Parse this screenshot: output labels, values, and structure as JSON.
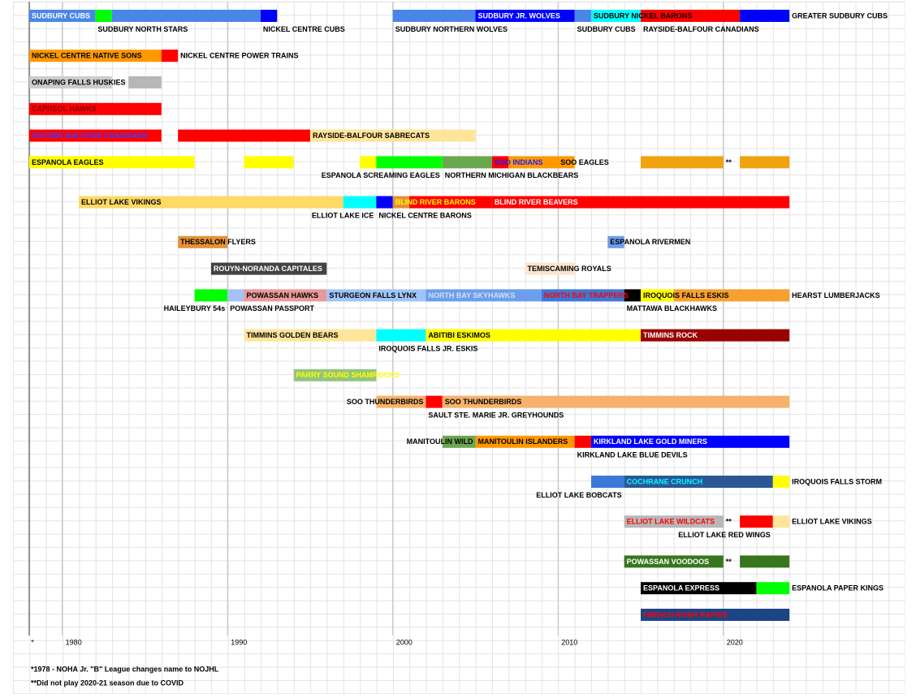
{
  "chart_data": {
    "type": "timeline",
    "xlim": [
      1978,
      2031
    ],
    "xticks": [
      {
        "value": 1978,
        "label": "*"
      },
      1980,
      1990,
      2000,
      2010,
      2020
    ],
    "grid": true,
    "tracks": [
      {
        "segments": [
          {
            "start": 1978,
            "end": 1982,
            "color": "#4a86e8"
          },
          {
            "start": 1982,
            "end": 1983,
            "color": "#00ff00"
          },
          {
            "start": 1983,
            "end": 1992,
            "color": "#4a86e8"
          },
          {
            "start": 1992,
            "end": 1993,
            "color": "#0000ff"
          },
          {
            "start": 2000,
            "end": 2005,
            "color": "#4a86e8"
          },
          {
            "start": 2005,
            "end": 2011,
            "color": "#0000ff"
          },
          {
            "start": 2011,
            "end": 2012,
            "color": "#4a86e8"
          },
          {
            "start": 2012,
            "end": 2015,
            "color": "#00ffff"
          },
          {
            "start": 2015,
            "end": 2021,
            "color": "#ff0000"
          },
          {
            "start": 2021,
            "end": 2024,
            "color": "#0000ff"
          }
        ],
        "labels": [
          {
            "text": "SUDBURY CUBS",
            "segment": 0,
            "place": "in",
            "color": "#ffffff"
          },
          {
            "text": "SUDBURY NORTH STARS",
            "segment": 1,
            "place": "below"
          },
          {
            "text": "NICKEL CENTRE CUBS",
            "segment": 3,
            "place": "below"
          },
          {
            "text": "SUDBURY NORTHERN WOLVES",
            "segment": 4,
            "place": "below"
          },
          {
            "text": "SUDBURY JR. WOLVES",
            "segment": 5,
            "place": "in",
            "color": "#ffffff"
          },
          {
            "text": "SUDBURY CUBS",
            "segment": 6,
            "place": "below"
          },
          {
            "text": "SUDBURY NICKEL BARONS",
            "segment": 7,
            "place": "in",
            "color": "#000000"
          },
          {
            "text": "RAYSIDE-BALFOUR CANADIANS",
            "segment": 8,
            "place": "below"
          },
          {
            "text": "GREATER SUDBURY CUBS",
            "segment": 9,
            "place": "right"
          }
        ]
      },
      {
        "segments": [
          {
            "start": 1978,
            "end": 1986,
            "color": "#ff9900"
          },
          {
            "start": 1986,
            "end": 1987,
            "color": "#ff0000"
          }
        ],
        "labels": [
          {
            "text": "NICKEL CENTRE NATIVE SONS",
            "segment": 0,
            "place": "in"
          },
          {
            "text": "NICKEL CENTRE POWER TRAINS",
            "segment": 1,
            "place": "right"
          }
        ]
      },
      {
        "segments": [
          {
            "start": 1978,
            "end": 1983,
            "color": "#cccccc"
          },
          {
            "start": 1984,
            "end": 1986,
            "color": "#b7b7b7"
          }
        ],
        "labels": [
          {
            "text": "ONAPING FALLS HUSKIES",
            "segment": 0,
            "place": "in"
          }
        ]
      },
      {
        "segments": [
          {
            "start": 1978,
            "end": 1986,
            "color": "#ff0000"
          }
        ],
        "labels": [
          {
            "text": "CAPREOL HAWKS",
            "segment": 0,
            "place": "in",
            "color": "#7f0000"
          }
        ]
      },
      {
        "segments": [
          {
            "start": 1978,
            "end": 1986,
            "color": "#ff0000"
          },
          {
            "start": 1987,
            "end": 1995,
            "color": "#ff0000"
          },
          {
            "start": 1995,
            "end": 2005,
            "color": "#ffe599"
          }
        ],
        "labels": [
          {
            "text": "RAYSIDE-BALFOUR CANADIANS",
            "segment": 0,
            "place": "in",
            "color": "#3c3cff"
          },
          {
            "text": "RAYSIDE-BALFOUR SABRECATS",
            "segment": 2,
            "place": "in"
          }
        ]
      },
      {
        "segments": [
          {
            "start": 1978,
            "end": 1988,
            "color": "#ffff00"
          },
          {
            "start": 1991,
            "end": 1994,
            "color": "#ffff00"
          },
          {
            "start": 1998,
            "end": 1999,
            "color": "#ffff00"
          },
          {
            "start": 1999,
            "end": 2003,
            "color": "#00ff00"
          },
          {
            "start": 2003,
            "end": 2006,
            "color": "#6aa84f"
          },
          {
            "start": 2006,
            "end": 2007,
            "color": "#ff0000"
          },
          {
            "start": 2007,
            "end": 2010,
            "color": "#ff9900"
          },
          {
            "start": 2010,
            "end": 2011,
            "color": "#ff9900"
          },
          {
            "start": 2015,
            "end": 2020,
            "color": "#f1a20f"
          },
          {
            "start": 2021,
            "end": 2024,
            "color": "#f1a20f"
          }
        ],
        "labels": [
          {
            "text": "ESPANOLA EAGLES",
            "segment": 0,
            "place": "in"
          },
          {
            "text": "ESPANOLA SCREAMING EAGLES",
            "segment": 3,
            "place": "below-end"
          },
          {
            "text": "NORTHERN MICHIGAN BLACKBEARS",
            "segment": 4,
            "place": "below"
          },
          {
            "text": "SOO INDIANS",
            "segment": 5,
            "place": "in",
            "color": "#1c1cff"
          },
          {
            "text": "SOO EAGLES",
            "segment": 7,
            "place": "in"
          },
          {
            "text": "**",
            "segment": 8,
            "place": "right"
          }
        ]
      },
      {
        "segments": [
          {
            "start": 1981,
            "end": 1997,
            "color": "#ffd966"
          },
          {
            "start": 1997,
            "end": 1999,
            "color": "#00ffff"
          },
          {
            "start": 1999,
            "end": 2000,
            "color": "#0000ff"
          },
          {
            "start": 2000,
            "end": 2001,
            "color": "#e69138"
          },
          {
            "start": 2001,
            "end": 2006,
            "color": "#ff0000"
          },
          {
            "start": 2006,
            "end": 2024,
            "color": "#ff0000"
          }
        ],
        "labels": [
          {
            "text": "ELLIOT LAKE VIKINGS",
            "segment": 0,
            "place": "in"
          },
          {
            "text": "ELLIOT LAKE ICE",
            "segment": 1,
            "place": "below-end"
          },
          {
            "text": "NICKEL CENTRE BARONS",
            "segment": 2,
            "place": "below"
          },
          {
            "text": "BLIND RIVER BARONS",
            "segment": 3,
            "place": "in",
            "color": "#ffff00"
          },
          {
            "text": "BLIND RIVER BEAVERS",
            "segment": 5,
            "place": "in",
            "color": "#ffffff"
          }
        ]
      },
      {
        "segments": [
          {
            "start": 1987,
            "end": 1990,
            "color": "#e69138"
          },
          {
            "start": 2013,
            "end": 2014,
            "color": "#6d9eeb"
          }
        ],
        "labels": [
          {
            "text": "THESSALON FLYERS",
            "segment": 0,
            "place": "in"
          },
          {
            "text": "ESPANOLA RIVERMEN",
            "segment": 1,
            "place": "in"
          }
        ]
      },
      {
        "segments": [
          {
            "start": 1989,
            "end": 1996,
            "color": "#434343"
          },
          {
            "start": 2008,
            "end": 2011,
            "color": "#fce5cd"
          }
        ],
        "labels": [
          {
            "text": "ROUYN-NORANDA CAPITALES",
            "segment": 0,
            "place": "in",
            "color": "#ffffff"
          },
          {
            "text": "TEMISCAMING ROYALS",
            "segment": 1,
            "place": "in"
          }
        ]
      },
      {
        "segments": [
          {
            "start": 1988,
            "end": 1990,
            "color": "#00ff00"
          },
          {
            "start": 1990,
            "end": 1991,
            "color": "#a4c2f4"
          },
          {
            "start": 1991,
            "end": 1996,
            "color": "#ea9999"
          },
          {
            "start": 1996,
            "end": 2002,
            "color": "#9fc5f8"
          },
          {
            "start": 2002,
            "end": 2009,
            "color": "#6d9eeb"
          },
          {
            "start": 2009,
            "end": 2014,
            "color": "#3c78d8"
          },
          {
            "start": 2014,
            "end": 2015,
            "color": "#000000"
          },
          {
            "start": 2015,
            "end": 2017,
            "color": "#ffff00"
          },
          {
            "start": 2017,
            "end": 2024,
            "color": "#f6a02f"
          }
        ],
        "labels": [
          {
            "text": "HAILEYBURY 54s",
            "segment": 0,
            "place": "below-end"
          },
          {
            "text": "POWASSAN PASSPORT",
            "segment": 1,
            "place": "below"
          },
          {
            "text": "POWASSAN HAWKS",
            "segment": 2,
            "place": "in"
          },
          {
            "text": "STURGEON FALLS LYNX",
            "segment": 3,
            "place": "in"
          },
          {
            "text": "NORTH BAY SKYHAWKS",
            "segment": 4,
            "place": "in",
            "color": "#cfe2f3"
          },
          {
            "text": "NORTH BAY TRAPPERS",
            "segment": 5,
            "place": "in",
            "color": "#ff0000"
          },
          {
            "text": "MATTAWA BLACKHAWKS",
            "segment": 6,
            "place": "below"
          },
          {
            "text": "IROQUOIS FALLS ESKIS",
            "segment": 7,
            "place": "in"
          },
          {
            "text": "HEARST LUMBERJACKS",
            "segment": 8,
            "place": "right"
          }
        ]
      },
      {
        "segments": [
          {
            "start": 1991,
            "end": 1999,
            "color": "#ffe599"
          },
          {
            "start": 1999,
            "end": 2002,
            "color": "#00ffff"
          },
          {
            "start": 2002,
            "end": 2015,
            "color": "#ffff00"
          },
          {
            "start": 2015,
            "end": 2024,
            "color": "#990000"
          }
        ],
        "labels": [
          {
            "text": "TIMMINS GOLDEN BEARS",
            "segment": 0,
            "place": "in"
          },
          {
            "text": "IROQUOIS FALLS JR. ESKIS",
            "segment": 1,
            "place": "below"
          },
          {
            "text": "ABITIBI ESKIMOS",
            "segment": 2,
            "place": "in"
          },
          {
            "text": "TIMMINS ROCK",
            "segment": 3,
            "place": "in",
            "color": "#ffffff"
          }
        ]
      },
      {
        "segments": [
          {
            "start": 1994,
            "end": 1999,
            "color": "#93c47d"
          }
        ],
        "labels": [
          {
            "text": "PARRY SOUND SHAMROCKS",
            "segment": 0,
            "place": "in",
            "color": "#ffff00"
          }
        ]
      },
      {
        "segments": [
          {
            "start": 1999,
            "end": 2002,
            "color": "#f6b26b"
          },
          {
            "start": 2002,
            "end": 2003,
            "color": "#ff0000"
          },
          {
            "start": 2003,
            "end": 2024,
            "color": "#f6b26b"
          }
        ],
        "labels": [
          {
            "text": "SOO THUNDERBIRDS",
            "segment": 0,
            "place": "in-end"
          },
          {
            "text": "SAULT STE. MARIE JR. GREYHOUNDS",
            "segment": 1,
            "place": "below"
          },
          {
            "text": "SOO THUNDERBIRDS",
            "segment": 2,
            "place": "in"
          }
        ]
      },
      {
        "segments": [
          {
            "start": 2003,
            "end": 2005,
            "color": "#6aa84f"
          },
          {
            "start": 2005,
            "end": 2011,
            "color": "#ff9900"
          },
          {
            "start": 2011,
            "end": 2012,
            "color": "#ff0000"
          },
          {
            "start": 2012,
            "end": 2024,
            "color": "#0000ff"
          }
        ],
        "labels": [
          {
            "text": "MANITOULIN WILD",
            "segment": 0,
            "place": "in-end"
          },
          {
            "text": "MANITOULIN ISLANDERS",
            "segment": 1,
            "place": "in"
          },
          {
            "text": "KIRKLAND LAKE BLUE DEVILS",
            "segment": 2,
            "place": "below"
          },
          {
            "text": "KIRKLAND LAKE GOLD MINERS",
            "segment": 3,
            "place": "in",
            "color": "#ffffff"
          }
        ]
      },
      {
        "segments": [
          {
            "start": 2012,
            "end": 2014,
            "color": "#3c78d8"
          },
          {
            "start": 2014,
            "end": 2023,
            "color": "#2b5797"
          },
          {
            "start": 2023,
            "end": 2024,
            "color": "#ffff00"
          }
        ],
        "labels": [
          {
            "text": "ELLIOT LAKE BOBCATS",
            "segment": 0,
            "place": "below-end"
          },
          {
            "text": "COCHRANE CRUNCH",
            "segment": 1,
            "place": "in",
            "color": "#00ffff"
          },
          {
            "text": "IROQUOIS FALLS STORM",
            "segment": 2,
            "place": "right"
          }
        ]
      },
      {
        "segments": [
          {
            "start": 2014,
            "end": 2020,
            "color": "#b7b7b7"
          },
          {
            "start": 2021,
            "end": 2023,
            "color": "#ff0000"
          },
          {
            "start": 2023,
            "end": 2024,
            "color": "#ffe599"
          }
        ],
        "labels": [
          {
            "text": "ELLIOT LAKE WILDCATS",
            "segment": 0,
            "place": "in",
            "color": "#ff0000"
          },
          {
            "text": "**",
            "segment": 0,
            "place": "right"
          },
          {
            "text": "ELLIOT LAKE RED WINGS",
            "segment": 1,
            "place": "below-end"
          },
          {
            "text": "ELLIOT LAKE VIKINGS",
            "segment": 2,
            "place": "right"
          }
        ]
      },
      {
        "segments": [
          {
            "start": 2014,
            "end": 2020,
            "color": "#38761d"
          },
          {
            "start": 2021,
            "end": 2024,
            "color": "#38761d"
          }
        ],
        "labels": [
          {
            "text": "POWASSAN VOODOOS",
            "segment": 0,
            "place": "in",
            "color": "#ffffff"
          },
          {
            "text": "**",
            "segment": 0,
            "place": "right"
          }
        ]
      },
      {
        "segments": [
          {
            "start": 2015,
            "end": 2022,
            "color": "#000000"
          },
          {
            "start": 2022,
            "end": 2024,
            "color": "#00ff00"
          }
        ],
        "labels": [
          {
            "text": "ESPANOLA EXPRESS",
            "segment": 0,
            "place": "in",
            "color": "#ffffff"
          },
          {
            "text": "ESPANOLA PAPER KINGS",
            "segment": 1,
            "place": "right"
          }
        ]
      },
      {
        "segments": [
          {
            "start": 2015,
            "end": 2024,
            "color": "#1c4587"
          }
        ],
        "labels": [
          {
            "text": "FRENCH RIVER RAPIDS",
            "segment": 0,
            "place": "in",
            "color": "#ff0000"
          }
        ]
      }
    ],
    "notes": [
      "*1978 - NOHA Jr. \"B\" League changes name to NOJHL",
      "**Did not play 2020-21 season due to COVID"
    ]
  }
}
